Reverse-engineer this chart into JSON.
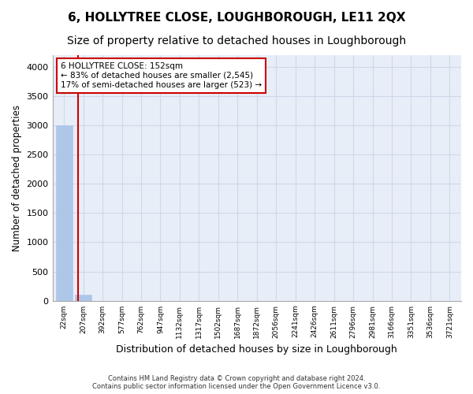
{
  "title": "6, HOLLYTREE CLOSE, LOUGHBOROUGH, LE11 2QX",
  "subtitle": "Size of property relative to detached houses in Loughborough",
  "xlabel": "Distribution of detached houses by size in Loughborough",
  "ylabel": "Number of detached properties",
  "footer_line1": "Contains HM Land Registry data © Crown copyright and database right 2024.",
  "footer_line2": "Contains public sector information licensed under the Open Government Licence v3.0.",
  "bin_labels": [
    "22sqm",
    "207sqm",
    "392sqm",
    "577sqm",
    "762sqm",
    "947sqm",
    "1132sqm",
    "1317sqm",
    "1502sqm",
    "1687sqm",
    "1872sqm",
    "2056sqm",
    "2241sqm",
    "2426sqm",
    "2611sqm",
    "2796sqm",
    "2981sqm",
    "3166sqm",
    "3351sqm",
    "3536sqm",
    "3721sqm"
  ],
  "bar_heights": [
    3000,
    110,
    2,
    1,
    1,
    0,
    0,
    0,
    0,
    0,
    0,
    0,
    0,
    0,
    0,
    0,
    0,
    0,
    0,
    0,
    0
  ],
  "bar_color": "#aec6e8",
  "bar_edge_color": "#aec6e8",
  "grid_color": "#d0d8e8",
  "background_color": "#e8eef8",
  "annotation_text_line1": "6 HOLLYTREE CLOSE: 152sqm",
  "annotation_text_line2": "← 83% of detached houses are smaller (2,545)",
  "annotation_text_line3": "17% of semi-detached houses are larger (523) →",
  "annotation_box_color": "#cc0000",
  "vline_color": "#cc0000",
  "vline_x": 0.72,
  "ylim": [
    0,
    4200
  ],
  "yticks": [
    0,
    500,
    1000,
    1500,
    2000,
    2500,
    3000,
    3500,
    4000
  ],
  "title_fontsize": 11,
  "subtitle_fontsize": 10
}
